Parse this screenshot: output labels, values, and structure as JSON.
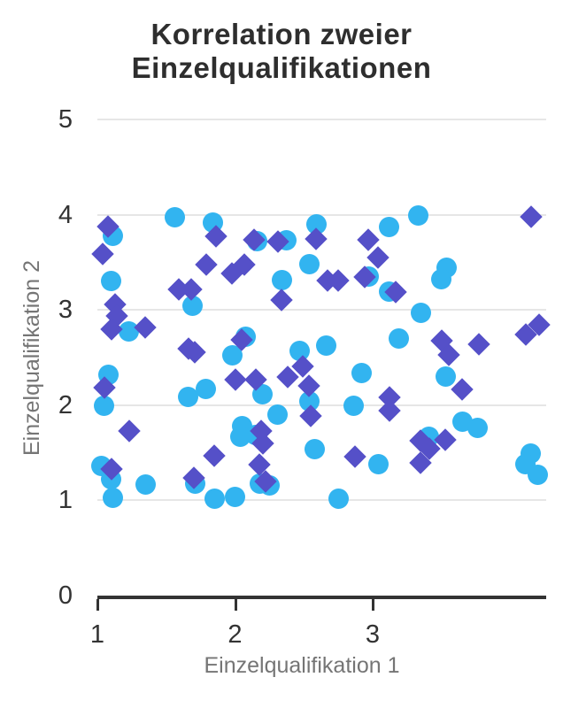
{
  "title": "Korrelation zweier Einzelqualifikationen",
  "colors": {
    "series_circle": "#32b4f0",
    "series_diamond": "#5550c8",
    "gridline": "#e6e6e6",
    "axis_line": "#333333",
    "tick_label": "#333333",
    "axis_title": "#757575",
    "title": "#2e2e2e",
    "background": "#ffffff"
  },
  "chart_data": {
    "type": "scatter",
    "title": "Korrelation zweier Einzelqualifikationen",
    "xlabel": "Einzelqualifikation 1",
    "ylabel": "Einzelqualifikation 2",
    "xlim": [
      1,
      4.26
    ],
    "ylim": [
      0,
      5
    ],
    "xticks": [
      1,
      2,
      3
    ],
    "yticks": [
      0,
      1,
      2,
      3,
      4,
      5
    ],
    "grid": "horizontal-only",
    "legend": "none",
    "series": [
      {
        "name": "circles",
        "marker": "circle",
        "color": "#32b4f0",
        "points": [
          [
            1.11,
            3.78
          ],
          [
            1.56,
            3.97
          ],
          [
            1.84,
            3.92
          ],
          [
            1.1,
            3.3
          ],
          [
            1.69,
            3.04
          ],
          [
            1.23,
            2.77
          ],
          [
            1.98,
            2.52
          ],
          [
            1.08,
            2.32
          ],
          [
            1.79,
            2.17
          ],
          [
            1.66,
            2.09
          ],
          [
            1.05,
            1.99
          ],
          [
            1.03,
            1.36
          ],
          [
            1.1,
            1.22
          ],
          [
            1.11,
            1.03
          ],
          [
            1.35,
            1.17
          ],
          [
            1.71,
            1.18
          ],
          [
            1.85,
            1.02
          ],
          [
            2.0,
            1.04
          ],
          [
            2.16,
            3.72
          ],
          [
            2.37,
            3.73
          ],
          [
            2.59,
            3.9
          ],
          [
            3.12,
            3.87
          ],
          [
            2.54,
            3.48
          ],
          [
            2.34,
            3.31
          ],
          [
            2.97,
            3.35
          ],
          [
            3.12,
            3.19
          ],
          [
            2.08,
            2.72
          ],
          [
            2.47,
            2.57
          ],
          [
            2.66,
            2.63
          ],
          [
            2.92,
            2.34
          ],
          [
            2.2,
            2.11
          ],
          [
            2.54,
            2.04
          ],
          [
            2.86,
            1.99
          ],
          [
            2.31,
            1.9
          ],
          [
            2.05,
            1.78
          ],
          [
            2.04,
            1.67
          ],
          [
            2.15,
            1.69
          ],
          [
            2.18,
            1.18
          ],
          [
            2.25,
            1.16
          ],
          [
            2.58,
            1.54
          ],
          [
            3.04,
            1.38
          ],
          [
            2.75,
            1.02
          ],
          [
            3.19,
            2.7
          ],
          [
            3.33,
            3.99
          ],
          [
            3.54,
            3.44
          ],
          [
            3.5,
            3.32
          ],
          [
            3.35,
            2.97
          ],
          [
            3.53,
            2.3
          ],
          [
            3.65,
            1.83
          ],
          [
            3.76,
            1.76
          ],
          [
            3.41,
            1.67
          ],
          [
            4.15,
            1.49
          ],
          [
            4.11,
            1.38
          ],
          [
            4.2,
            1.27
          ]
        ]
      },
      {
        "name": "diamonds",
        "marker": "diamond",
        "color": "#5550c8",
        "points": [
          [
            1.08,
            3.88
          ],
          [
            1.04,
            3.59
          ],
          [
            1.86,
            3.77
          ],
          [
            1.79,
            3.48
          ],
          [
            1.98,
            3.38
          ],
          [
            1.59,
            3.22
          ],
          [
            1.68,
            3.22
          ],
          [
            1.13,
            3.06
          ],
          [
            1.14,
            2.94
          ],
          [
            1.1,
            2.8
          ],
          [
            1.35,
            2.82
          ],
          [
            1.66,
            2.59
          ],
          [
            1.71,
            2.56
          ],
          [
            1.05,
            2.18
          ],
          [
            2.0,
            2.27
          ],
          [
            1.23,
            1.73
          ],
          [
            1.85,
            1.47
          ],
          [
            1.1,
            1.33
          ],
          [
            1.7,
            1.24
          ],
          [
            2.14,
            3.74
          ],
          [
            2.31,
            3.72
          ],
          [
            2.59,
            3.75
          ],
          [
            2.97,
            3.74
          ],
          [
            2.07,
            3.48
          ],
          [
            3.04,
            3.55
          ],
          [
            2.67,
            3.31
          ],
          [
            2.75,
            3.31
          ],
          [
            2.94,
            3.35
          ],
          [
            3.17,
            3.19
          ],
          [
            2.34,
            3.1
          ],
          [
            2.05,
            2.69
          ],
          [
            2.49,
            2.41
          ],
          [
            2.38,
            2.3
          ],
          [
            2.15,
            2.27
          ],
          [
            2.54,
            2.2
          ],
          [
            3.12,
            2.08
          ],
          [
            3.12,
            1.94
          ],
          [
            2.55,
            1.89
          ],
          [
            2.19,
            1.73
          ],
          [
            2.2,
            1.6
          ],
          [
            2.18,
            1.38
          ],
          [
            2.22,
            1.2
          ],
          [
            2.87,
            1.46
          ],
          [
            3.5,
            2.68
          ],
          [
            3.55,
            2.53
          ],
          [
            3.77,
            2.64
          ],
          [
            4.11,
            2.74
          ],
          [
            4.21,
            2.84
          ],
          [
            3.65,
            2.17
          ],
          [
            3.35,
            1.63
          ],
          [
            3.41,
            1.54
          ],
          [
            3.53,
            1.64
          ],
          [
            3.35,
            1.39
          ],
          [
            4.15,
            3.98
          ]
        ]
      }
    ]
  }
}
